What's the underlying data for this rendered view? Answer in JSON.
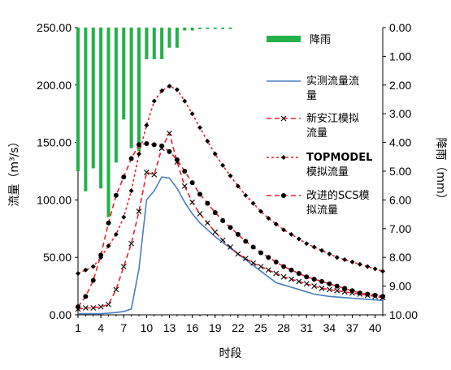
{
  "chart_data": {
    "type": "line",
    "xlabel": "时段",
    "ylabel_left": "流量（m³/s）",
    "ylabel_right": "降雨（mm）",
    "x_ticks": [
      1,
      4,
      7,
      10,
      13,
      16,
      19,
      22,
      25,
      28,
      31,
      34,
      37,
      40
    ],
    "xlim": [
      1,
      41
    ],
    "ylim_left": [
      0,
      250
    ],
    "ylim_right": [
      0,
      10
    ],
    "left_ticks": [
      "0.00",
      "50.00",
      "100.00",
      "150.00",
      "200.00",
      "250.00"
    ],
    "right_ticks": [
      "0.00",
      "1.00",
      "2.00",
      "3.00",
      "4.00",
      "5.00",
      "6.00",
      "7.00",
      "8.00",
      "9.00",
      "10.00"
    ],
    "rain": {
      "name": "降雨",
      "color": "#22b04b",
      "x": [
        1,
        2,
        3,
        4,
        5,
        6,
        7,
        8,
        9,
        10,
        11,
        12,
        13,
        14,
        15,
        16,
        17,
        18,
        19,
        20,
        21
      ],
      "values": [
        5.0,
        5.7,
        4.9,
        5.6,
        6.6,
        4.7,
        3.2,
        4.2,
        4.3,
        1.1,
        1.1,
        1.1,
        0.7,
        0.7,
        0.1,
        0.1,
        0.05,
        0.05,
        0.05,
        0.05,
        0.05
      ]
    },
    "series": [
      {
        "name": "实测流量流量",
        "color": "#4a7fc1",
        "dash": "",
        "marker": "none",
        "x": [
          1,
          2,
          3,
          4,
          5,
          6,
          7,
          8,
          9,
          10,
          11,
          12,
          13,
          14,
          15,
          16,
          17,
          18,
          19,
          20,
          21,
          22,
          23,
          24,
          25,
          26,
          27,
          28,
          29,
          30,
          31,
          32,
          33,
          34,
          35,
          36,
          37,
          38,
          39,
          40,
          41
        ],
        "values": [
          1,
          1,
          1,
          1,
          1.5,
          2,
          3,
          5,
          40,
          100,
          108,
          120,
          119,
          110,
          98,
          88,
          80,
          74,
          68,
          63,
          58,
          53,
          48,
          43,
          38,
          33,
          28,
          26,
          24,
          22,
          20,
          18,
          17,
          16,
          15.5,
          15,
          14.5,
          14,
          13.5,
          13,
          12.5
        ]
      },
      {
        "name": "新安江模拟流量",
        "color": "#e8202a",
        "dash": "6,4",
        "marker": "x",
        "x": [
          1,
          2,
          3,
          4,
          5,
          6,
          7,
          8,
          9,
          10,
          11,
          12,
          13,
          14,
          15,
          16,
          17,
          18,
          19,
          20,
          21,
          22,
          23,
          24,
          25,
          26,
          27,
          28,
          29,
          30,
          31,
          32,
          33,
          34,
          35,
          36,
          37,
          38,
          39,
          40,
          41
        ],
        "values": [
          5,
          6,
          6,
          7,
          9,
          22,
          42,
          62,
          90,
          124,
          122,
          145,
          158,
          133,
          112,
          98,
          88,
          80,
          72,
          65,
          59,
          53,
          49,
          45,
          42,
          39,
          36,
          33,
          31,
          29,
          27,
          25,
          23,
          22,
          21,
          20,
          19,
          18,
          17,
          16,
          15
        ]
      },
      {
        "name": "TOPMODEL模拟流量",
        "color": "#e8202a",
        "dash": "3,3",
        "marker": "diamond",
        "x": [
          1,
          2,
          3,
          4,
          5,
          6,
          7,
          8,
          9,
          10,
          11,
          12,
          13,
          14,
          15,
          16,
          17,
          18,
          19,
          20,
          21,
          22,
          23,
          24,
          25,
          26,
          27,
          28,
          29,
          30,
          31,
          32,
          33,
          34,
          35,
          36,
          37,
          38,
          39,
          40,
          41
        ],
        "values": [
          36,
          39,
          42,
          50,
          60,
          70,
          85,
          108,
          140,
          165,
          186,
          195,
          199,
          196,
          186,
          175,
          163,
          151,
          140,
          130,
          121,
          112,
          104,
          97,
          90,
          84,
          79,
          74,
          70,
          66,
          62,
          59,
          56,
          53,
          50,
          48,
          46,
          44,
          42,
          40,
          38
        ]
      },
      {
        "name": "改进的SCS模拟流量",
        "color": "#e8202a",
        "dash": "6,4",
        "marker": "dot",
        "x": [
          1,
          2,
          3,
          4,
          5,
          6,
          7,
          8,
          9,
          10,
          11,
          12,
          13,
          14,
          15,
          16,
          17,
          18,
          19,
          20,
          21,
          22,
          23,
          24,
          25,
          26,
          27,
          28,
          29,
          30,
          31,
          32,
          33,
          34,
          35,
          36,
          37,
          38,
          39,
          40,
          41
        ],
        "values": [
          7,
          16,
          30,
          52,
          80,
          104,
          120,
          136,
          148,
          149,
          148,
          147,
          142,
          135,
          125,
          115,
          105,
          97,
          89,
          82,
          76,
          70,
          64,
          59,
          54,
          50,
          46,
          42,
          39,
          36,
          33,
          31,
          29,
          27,
          25,
          23,
          21,
          19,
          18,
          17,
          16
        ]
      }
    ],
    "legend": [
      [
        "降雨"
      ],
      [
        "实测流量流",
        "量"
      ],
      [
        "新安江模拟",
        "流量"
      ],
      [
        "TOPMODEL",
        "模拟流量"
      ],
      [
        "改进的SCS模",
        "拟流量"
      ]
    ]
  }
}
